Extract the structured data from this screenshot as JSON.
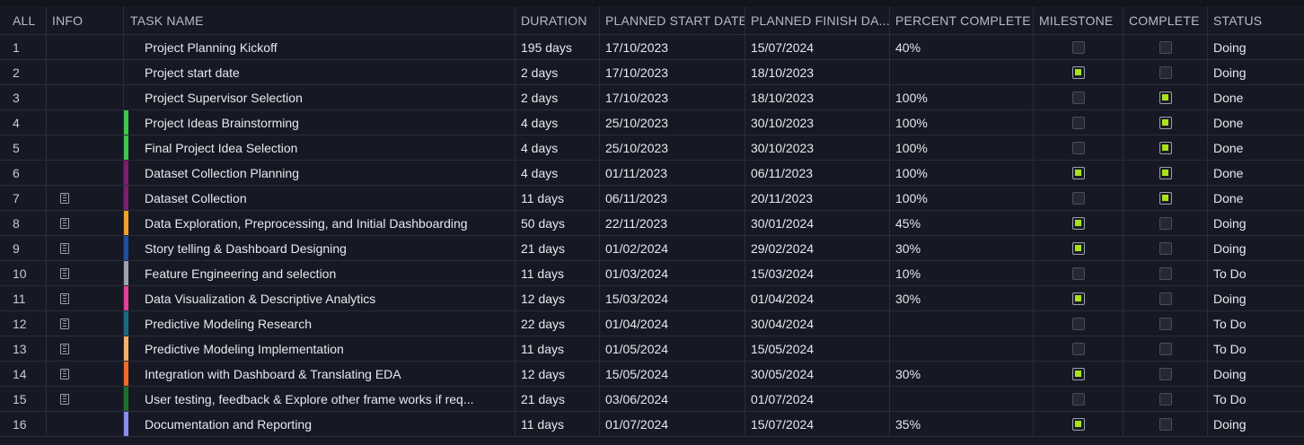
{
  "columns": {
    "all": "ALL",
    "info": "INFO",
    "task_name": "TASK NAME",
    "duration": "DURATION",
    "planned_start": "PLANNED START DATE",
    "planned_finish": "PLANNED FINISH DA...",
    "percent_complete": "PERCENT COMPLETE",
    "milestone": "MILESTONE",
    "complete": "COMPLETE",
    "status": "STATUS"
  },
  "colors": {
    "background": "#161824",
    "grid_line": "#2a2d3a",
    "checkbox_on": "#a8e21d"
  },
  "rows": [
    {
      "num": "1",
      "info": false,
      "color": "",
      "name": "Project Planning Kickoff",
      "duration": "195 days",
      "start": "17/10/2023",
      "finish": "15/07/2024",
      "percent": "40%",
      "milestone": false,
      "complete": false,
      "status": "Doing"
    },
    {
      "num": "2",
      "info": false,
      "color": "",
      "name": "Project start date",
      "duration": "2 days",
      "start": "17/10/2023",
      "finish": "18/10/2023",
      "percent": "",
      "milestone": true,
      "complete": false,
      "status": "Doing"
    },
    {
      "num": "3",
      "info": false,
      "color": "",
      "name": "Project Supervisor Selection",
      "duration": "2 days",
      "start": "17/10/2023",
      "finish": "18/10/2023",
      "percent": "100%",
      "milestone": false,
      "complete": true,
      "status": "Done"
    },
    {
      "num": "4",
      "info": false,
      "color": "#3ec74a",
      "name": "Project Ideas Brainstorming",
      "duration": "4 days",
      "start": "25/10/2023",
      "finish": "30/10/2023",
      "percent": "100%",
      "milestone": false,
      "complete": true,
      "status": "Done"
    },
    {
      "num": "5",
      "info": false,
      "color": "#3ec74a",
      "name": "Final Project Idea Selection",
      "duration": "4 days",
      "start": "25/10/2023",
      "finish": "30/10/2023",
      "percent": "100%",
      "milestone": false,
      "complete": true,
      "status": "Done"
    },
    {
      "num": "6",
      "info": false,
      "color": "#7a1f6e",
      "name": "Dataset Collection Planning",
      "duration": "4 days",
      "start": "01/11/2023",
      "finish": "06/11/2023",
      "percent": "100%",
      "milestone": true,
      "complete": true,
      "status": "Done"
    },
    {
      "num": "7",
      "info": true,
      "color": "#7a1f6e",
      "name": "Dataset Collection",
      "duration": "11 days",
      "start": "06/11/2023",
      "finish": "20/11/2023",
      "percent": "100%",
      "milestone": false,
      "complete": true,
      "status": "Done"
    },
    {
      "num": "8",
      "info": true,
      "color": "#f2a02a",
      "name": "Data Exploration, Preprocessing, and Initial Dashboarding",
      "duration": "50 days",
      "start": "22/11/2023",
      "finish": "30/01/2024",
      "percent": "45%",
      "milestone": true,
      "complete": false,
      "status": "Doing"
    },
    {
      "num": "9",
      "info": true,
      "color": "#1f4fa0",
      "name": "Story telling & Dashboard Designing",
      "duration": "21 days",
      "start": "01/02/2024",
      "finish": "29/02/2024",
      "percent": "30%",
      "milestone": true,
      "complete": false,
      "status": "Doing"
    },
    {
      "num": "10",
      "info": true,
      "color": "#a0a3ad",
      "name": "Feature Engineering and selection",
      "duration": "11 days",
      "start": "01/03/2024",
      "finish": "15/03/2024",
      "percent": "10%",
      "milestone": false,
      "complete": false,
      "status": "To Do"
    },
    {
      "num": "11",
      "info": true,
      "color": "#e0409a",
      "name": "Data Visualization  &  Descriptive Analytics",
      "duration": "12 days",
      "start": "15/03/2024",
      "finish": "01/04/2024",
      "percent": "30%",
      "milestone": true,
      "complete": false,
      "status": "Doing"
    },
    {
      "num": "12",
      "info": true,
      "color": "#1a6a80",
      "name": "Predictive Modeling Research",
      "duration": "22 days",
      "start": "01/04/2024",
      "finish": "30/04/2024",
      "percent": "",
      "milestone": false,
      "complete": false,
      "status": "To Do"
    },
    {
      "num": "13",
      "info": true,
      "color": "#f5b06a",
      "name": "Predictive Modeling Implementation",
      "duration": "11 days",
      "start": "01/05/2024",
      "finish": "15/05/2024",
      "percent": "",
      "milestone": false,
      "complete": false,
      "status": "To Do"
    },
    {
      "num": "14",
      "info": true,
      "color": "#f06a2a",
      "name": "Integration with Dashboard & Translating EDA",
      "duration": "12 days",
      "start": "15/05/2024",
      "finish": "30/05/2024",
      "percent": "30%",
      "milestone": true,
      "complete": false,
      "status": "Doing"
    },
    {
      "num": "15",
      "info": true,
      "color": "#1e6e2e",
      "name": "User testing, feedback   & Explore other frame works if req...",
      "duration": "21 days",
      "start": "03/06/2024",
      "finish": "01/07/2024",
      "percent": "",
      "milestone": false,
      "complete": false,
      "status": "To Do"
    },
    {
      "num": "16",
      "info": false,
      "color": "#8a8cf0",
      "name": "Documentation and Reporting",
      "duration": "11 days",
      "start": "01/07/2024",
      "finish": "15/07/2024",
      "percent": "35%",
      "milestone": true,
      "complete": false,
      "status": "Doing"
    }
  ]
}
